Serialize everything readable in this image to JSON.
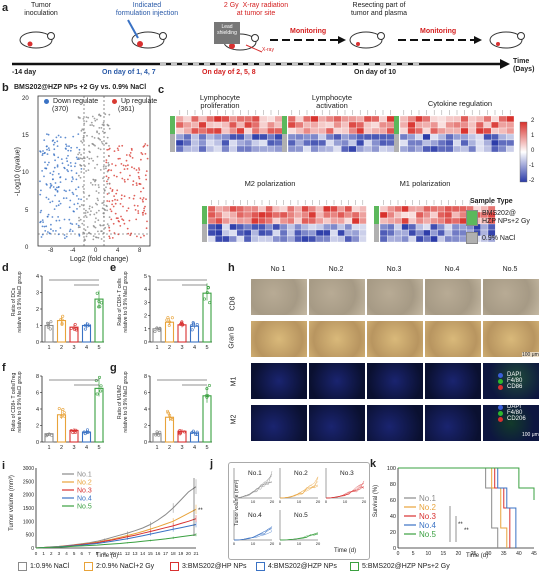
{
  "panel_a": {
    "label": "a",
    "events": [
      {
        "title": "Tumor\ninoculation",
        "color": "#222222",
        "day": "-14 day",
        "day_color": "#222222"
      },
      {
        "title": "Indicated\nformulation injection",
        "color": "#2a5aa8",
        "day": "On day of 1, 4, 7",
        "day_color": "#2a5aa8"
      },
      {
        "title": "2 Gy  X-ray radiation\nat tumor site",
        "color": "#d42020",
        "day": "On day of 2, 5, 8",
        "day_color": "#d42020"
      },
      {
        "title": "Resecting part of\ntumor and plasma",
        "color": "#222222",
        "day": "On day of 10",
        "day_color": "#222222"
      }
    ],
    "lead_shielding": "Lead\nshielding",
    "xray": "X-ray",
    "monitoring": "Monitoring",
    "time_label": "Time\n(Days)"
  },
  "panel_b": {
    "label": "b",
    "title": "BMS202@HZP NPs +2 Gy vs. 0.9% NaCl",
    "down_label": "Down regulate",
    "down_count": "(370)",
    "up_label": "Up regulate",
    "up_count": "(361)",
    "ylabel": "-Log10 (qvalue)",
    "xlabel": "Log2 (fold change)",
    "xticks": [
      "-8",
      "-4",
      "0",
      "4",
      "8"
    ],
    "yticks": [
      "0",
      "5",
      "10",
      "15",
      "20"
    ],
    "down_color": "#3a72c4",
    "up_color": "#d83a32"
  },
  "panel_c": {
    "label": "c",
    "titles": [
      "Lymphocyte\nproliferation",
      "Lymphocyte\nactivation",
      "Cytokine regulation",
      "M2 polarization",
      "M1 polarization"
    ],
    "scale_ticks": [
      "2",
      "1",
      "0",
      "-1",
      "-2"
    ],
    "legend_title": "Sample Type",
    "legend_items": [
      {
        "label": "BMS202@\nHZP NPs+2 Gy",
        "color": "#5cb85c"
      },
      {
        "label": "0.9% NaCl",
        "color": "#b0b0b0"
      }
    ]
  },
  "panel_d": {
    "label": "d",
    "ylabel": "Ratio of DCs\nrelative to 0.9% NaCl group",
    "xticks": [
      "1",
      "2",
      "3",
      "4",
      "5"
    ],
    "yticks": [
      "0",
      "1",
      "2",
      "3",
      "4"
    ]
  },
  "panel_e": {
    "label": "e",
    "ylabel": "Ratio of CD8+ T cells\nrelative to 0.9% NaCl group",
    "xticks": [
      "1",
      "2",
      "3",
      "4",
      "5"
    ],
    "yticks": [
      "0",
      "1",
      "2",
      "3",
      "4",
      "5"
    ]
  },
  "panel_f": {
    "label": "f",
    "ylabel": "Ratio of CD8+ T cells/Treg\nrelative to 0.9% NaCl group",
    "xticks": [
      "1",
      "2",
      "3",
      "4",
      "5"
    ],
    "yticks": [
      "0",
      "2",
      "4",
      "6",
      "8"
    ]
  },
  "panel_g": {
    "label": "g",
    "ylabel": "Ratio of M1/M2\nrelative to 0.9% NaCl group",
    "xticks": [
      "1",
      "2",
      "3",
      "4",
      "5"
    ],
    "yticks": [
      "0",
      "2",
      "4",
      "6",
      "8"
    ]
  },
  "panel_h": {
    "label": "h",
    "columns": [
      "No 1",
      "No.2",
      "No.3",
      "No.4",
      "No.5"
    ],
    "rows": [
      "CD8",
      "Gran B",
      "M1",
      "M2"
    ],
    "scale": "100 μm",
    "m1_legend": [
      {
        "label": "DAPI",
        "color": "#3a5fd8"
      },
      {
        "label": "F4/80",
        "color": "#2eb82e"
      },
      {
        "label": "CD86",
        "color": "#d83030"
      }
    ],
    "m2_legend": [
      {
        "label": "DAPI",
        "color": "#3a5fd8"
      },
      {
        "label": "F4/80",
        "color": "#2eb82e"
      },
      {
        "label": "CD206",
        "color": "#d83030"
      }
    ]
  },
  "panel_i": {
    "label": "i",
    "ylabel": "Tumor volume (mm³)",
    "xlabel": "Time (d)",
    "yticks": [
      "0",
      "500",
      "1000",
      "1500",
      "2000",
      "2500",
      "3000"
    ],
    "xticks": [
      "0",
      "1",
      "2",
      "3",
      "4",
      "5",
      "6",
      "7",
      "8",
      "9",
      "10",
      "11",
      "12",
      "13",
      "14",
      "15",
      "16",
      "17",
      "18",
      "19",
      "20",
      "21"
    ],
    "legend": [
      "No.1",
      "No.2",
      "No.3",
      "No.4",
      "No.5"
    ],
    "sig": "**"
  },
  "panel_j": {
    "label": "j",
    "ylabel": "Tumor volume (mm³)",
    "xlabel": "Time (d)",
    "subtitles": [
      "No.1",
      "No.2",
      "No.3",
      "No.4",
      "No.5"
    ],
    "xticks": [
      "0",
      "10",
      "20"
    ]
  },
  "panel_k": {
    "label": "k",
    "ylabel": "Survival (%)",
    "xlabel": "Time (d)",
    "yticks": [
      "0",
      "20",
      "40",
      "60",
      "80",
      "100"
    ],
    "xticks": [
      "0",
      "5",
      "10",
      "15",
      "20",
      "25",
      "30",
      "35",
      "40",
      "45"
    ],
    "legend": [
      "No.1",
      "No.2",
      "No.3",
      "No.4",
      "No.5"
    ],
    "sig": [
      "**",
      "**"
    ]
  },
  "group_colors": [
    "#8a8a8a",
    "#e8a33a",
    "#d83030",
    "#3a72c4",
    "#3aa040"
  ],
  "bottom_legend": [
    "1:0.9% NaCl",
    "2:0.9% NaCl+2 Gy",
    "3:BMS202@HP NPs",
    "4:BMS202@HZP NPs",
    "5:BMS202@HZP NPs+2 Gy"
  ],
  "chart_data": [
    {
      "type": "bar",
      "panel": "d",
      "categories": [
        "1",
        "2",
        "3",
        "4",
        "5"
      ],
      "values": [
        1.0,
        1.3,
        0.9,
        1.0,
        2.6
      ],
      "ylim": [
        0,
        4
      ]
    },
    {
      "type": "bar",
      "panel": "e",
      "categories": [
        "1",
        "2",
        "3",
        "4",
        "5"
      ],
      "values": [
        1.0,
        1.5,
        1.3,
        1.2,
        3.7
      ],
      "ylim": [
        0,
        5
      ]
    },
    {
      "type": "bar",
      "panel": "f",
      "categories": [
        "1",
        "2",
        "3",
        "4",
        "5"
      ],
      "values": [
        1.0,
        3.3,
        1.4,
        1.2,
        6.5
      ],
      "ylim": [
        0,
        8
      ]
    },
    {
      "type": "bar",
      "panel": "g",
      "categories": [
        "1",
        "2",
        "3",
        "4",
        "5"
      ],
      "values": [
        1.0,
        3.0,
        1.3,
        1.1,
        5.6
      ],
      "ylim": [
        0,
        8
      ]
    },
    {
      "type": "line",
      "panel": "i",
      "x": [
        0,
        1,
        2,
        3,
        4,
        5,
        6,
        7,
        8,
        9,
        10,
        11,
        12,
        13,
        14,
        15,
        16,
        17,
        18,
        19,
        20,
        21
      ],
      "series": [
        {
          "name": "No.1",
          "values": [
            0,
            20,
            40,
            60,
            90,
            120,
            160,
            200,
            250,
            320,
            400,
            480,
            560,
            650,
            750,
            880,
            1050,
            1250,
            1500,
            1800,
            2100,
            2300
          ]
        },
        {
          "name": "No.2",
          "values": [
            0,
            20,
            35,
            55,
            80,
            105,
            140,
            175,
            215,
            270,
            330,
            400,
            470,
            540,
            620,
            710,
            800,
            900,
            1000,
            1150,
            1300,
            1450
          ]
        },
        {
          "name": "No.3",
          "values": [
            0,
            20,
            35,
            50,
            75,
            100,
            130,
            165,
            200,
            250,
            300,
            360,
            420,
            480,
            550,
            620,
            690,
            760,
            830,
            920,
            1000,
            1100
          ]
        },
        {
          "name": "No.4",
          "values": [
            0,
            20,
            30,
            45,
            65,
            85,
            110,
            140,
            170,
            210,
            250,
            300,
            350,
            400,
            460,
            520,
            580,
            640,
            700,
            760,
            820,
            880
          ]
        },
        {
          "name": "No.5",
          "values": [
            0,
            15,
            25,
            35,
            50,
            65,
            80,
            95,
            110,
            130,
            150,
            170,
            195,
            220,
            250,
            280,
            310,
            340,
            380,
            420,
            460,
            500
          ]
        }
      ],
      "ylim": [
        0,
        3000
      ]
    },
    {
      "type": "line",
      "panel": "k",
      "series": [
        {
          "name": "No.1",
          "x": [
            0,
            27,
            29,
            31,
            33
          ],
          "values": [
            100,
            100,
            75,
            25,
            0
          ]
        },
        {
          "name": "No.2",
          "x": [
            0,
            28,
            31,
            34,
            36
          ],
          "values": [
            100,
            100,
            75,
            25,
            0
          ]
        },
        {
          "name": "No.3",
          "x": [
            0,
            29,
            32,
            35,
            37
          ],
          "values": [
            100,
            100,
            75,
            50,
            0
          ]
        },
        {
          "name": "No.4",
          "x": [
            0,
            30,
            33,
            36,
            39
          ],
          "values": [
            100,
            100,
            75,
            50,
            0
          ]
        },
        {
          "name": "No.5",
          "x": [
            0,
            34,
            40,
            45
          ],
          "values": [
            100,
            100,
            75,
            60
          ]
        }
      ],
      "xlim": [
        0,
        45
      ],
      "ylim": [
        0,
        100
      ]
    }
  ]
}
